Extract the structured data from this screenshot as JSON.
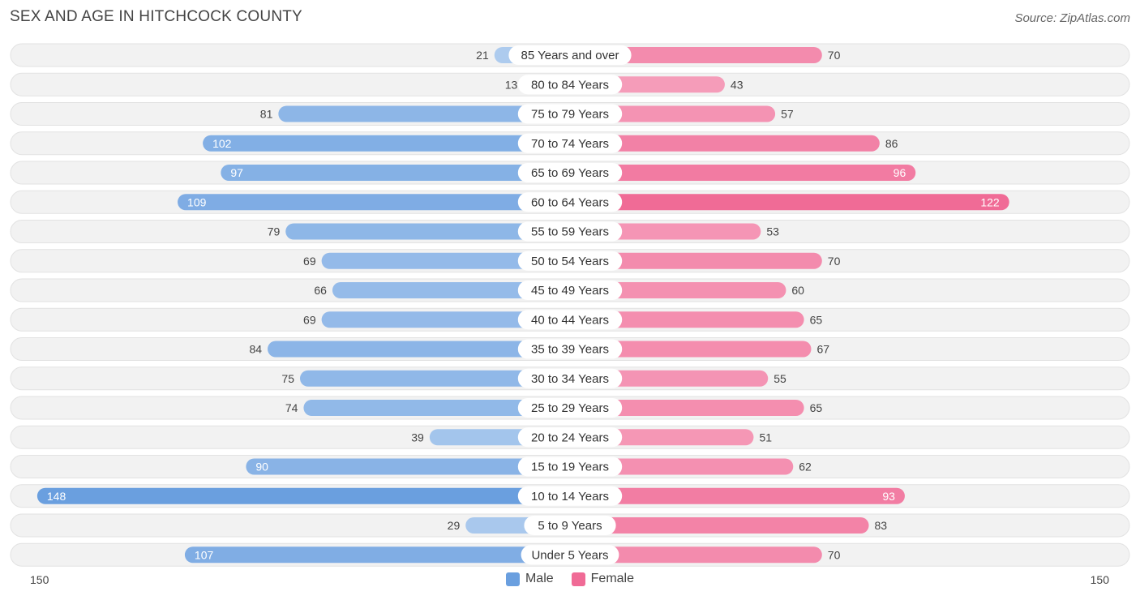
{
  "chart_data": {
    "type": "bar",
    "orientation": "horizontal-diverging",
    "title": "SEX AND AGE IN HITCHCOCK COUNTY",
    "source": "Source: ZipAtlas.com",
    "categories": [
      "85 Years and over",
      "80 to 84 Years",
      "75 to 79 Years",
      "70 to 74 Years",
      "65 to 69 Years",
      "60 to 64 Years",
      "55 to 59 Years",
      "50 to 54 Years",
      "45 to 49 Years",
      "40 to 44 Years",
      "35 to 39 Years",
      "30 to 34 Years",
      "25 to 29 Years",
      "20 to 24 Years",
      "15 to 19 Years",
      "10 to 14 Years",
      "5 to 9 Years",
      "Under 5 Years"
    ],
    "series": [
      {
        "name": "Male",
        "color": "#6a9fdf",
        "values": [
          21,
          13,
          81,
          102,
          97,
          109,
          79,
          69,
          66,
          69,
          84,
          75,
          74,
          39,
          90,
          148,
          29,
          107
        ]
      },
      {
        "name": "Female",
        "color": "#f06b96",
        "values": [
          70,
          43,
          57,
          86,
          96,
          122,
          53,
          70,
          60,
          65,
          67,
          55,
          65,
          51,
          62,
          93,
          83,
          70
        ]
      }
    ],
    "axis_min_label": "150",
    "axis_max_label": "150",
    "xlim": [
      -150,
      150
    ]
  },
  "legend": {
    "male": "Male",
    "female": "Female"
  }
}
